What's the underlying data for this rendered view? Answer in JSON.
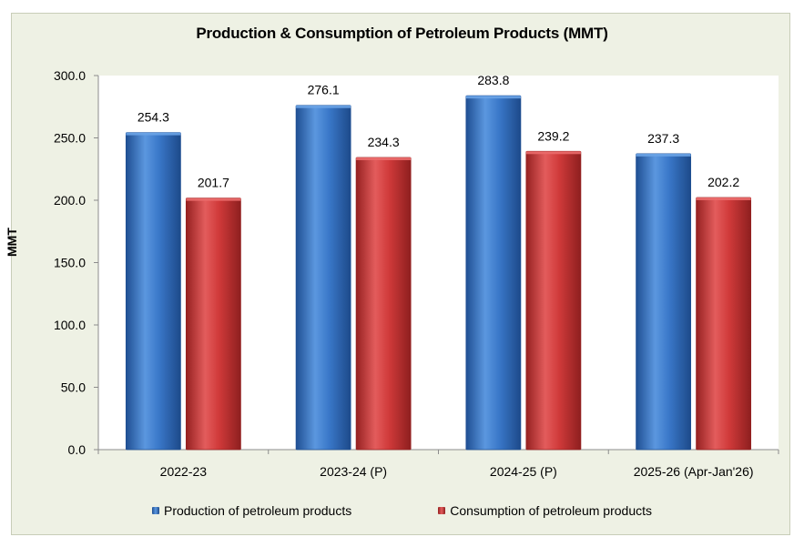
{
  "chart_data": {
    "type": "bar",
    "title": "Production & Consumption of Petroleum Products (MMT)",
    "xlabel": "",
    "ylabel": "MMT",
    "ylim": [
      0,
      300
    ],
    "yticks": [
      "0.0",
      "50.0",
      "100.0",
      "150.0",
      "200.0",
      "250.0",
      "300.0"
    ],
    "categories": [
      "2022-23",
      "2023-24 (P)",
      "2024-25 (P)",
      "2025-26 (Apr-Jan'26)"
    ],
    "series": [
      {
        "name": "Production of petroleum products",
        "values": [
          254.3,
          276.1,
          283.8,
          237.3
        ],
        "labels": [
          "254.3",
          "276.1",
          "283.8",
          "237.3"
        ],
        "color": "#3a78c9",
        "color_light": "#6aa3e6",
        "color_dark": "#1f4f93"
      },
      {
        "name": "Consumption of petroleum products",
        "values": [
          201.7,
          234.3,
          239.2,
          202.2
        ],
        "labels": [
          "201.7",
          "234.3",
          "239.2",
          "202.2"
        ],
        "color": "#d03a3a",
        "color_light": "#ea6b6b",
        "color_dark": "#962121"
      }
    ],
    "grid": false,
    "legend_position": "bottom"
  }
}
